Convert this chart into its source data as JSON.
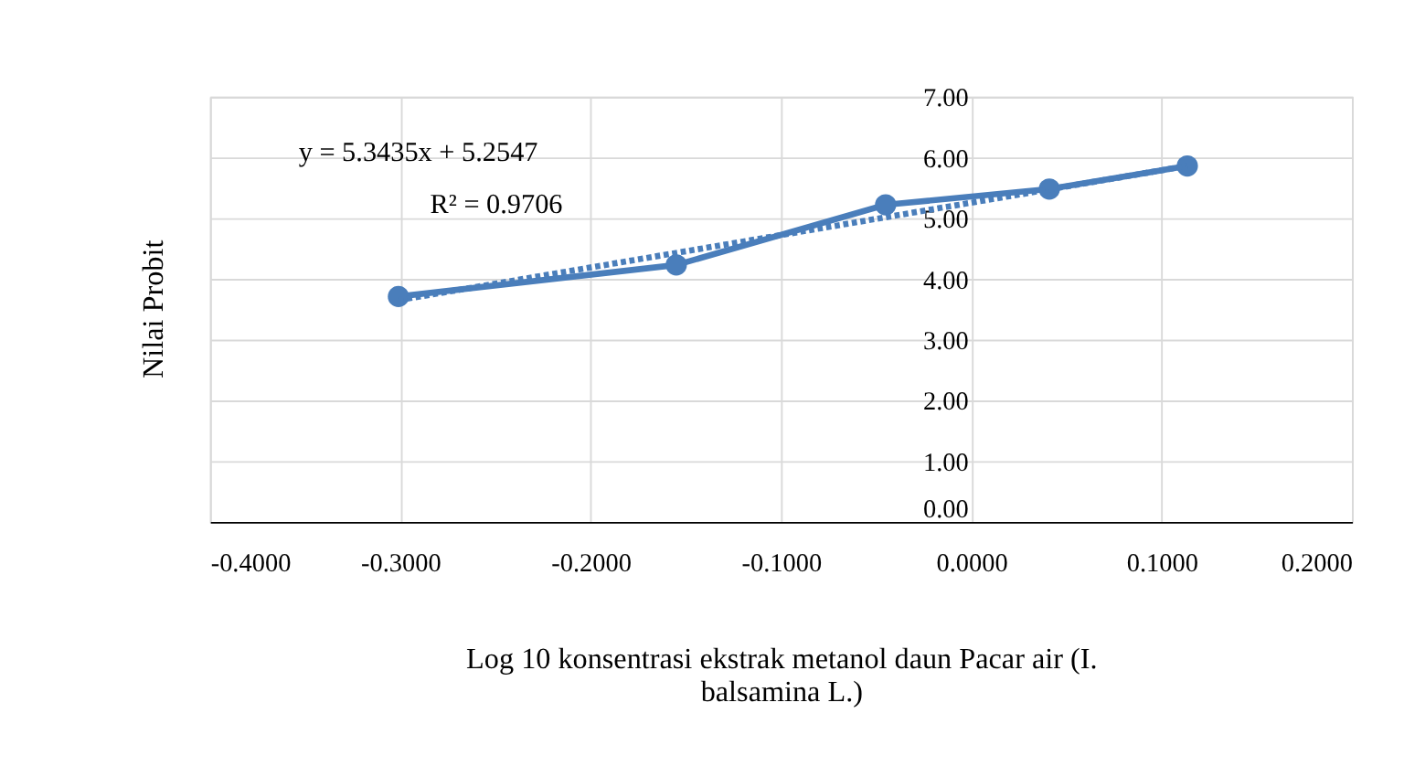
{
  "chart_data": {
    "type": "line",
    "xlabel": "Log 10  konsentrasi ekstrak metanol daun Pacar air (I. balsamina L.)",
    "ylabel": "Nilai Probit",
    "x": [
      -0.301,
      -0.155,
      -0.045,
      0.041,
      0.1135
    ],
    "series": [
      {
        "color": "#4a7ebb",
        "values": [
          3.71,
          4.23,
          5.22,
          5.48,
          5.86
        ],
        "marker": "circle",
        "line_style": "solid"
      },
      {
        "type": "line",
        "color": "#4a7ebb",
        "x": [
          -0.301,
          0.1135
        ],
        "values": [
          3.65,
          5.86
        ],
        "marker": "none",
        "line_style": "dotted"
      }
    ],
    "xlim": [
      -0.4,
      0.2
    ],
    "xticks": [
      {
        "value": -0.4,
        "label": "-0.4000"
      },
      {
        "value": -0.3,
        "label": "-0.3000"
      },
      {
        "value": -0.2,
        "label": "-0.2000"
      },
      {
        "value": -0.1,
        "label": "-0.1000"
      },
      {
        "value": 0,
        "label": "0.0000"
      },
      {
        "value": 0.1,
        "label": "0.1000"
      },
      {
        "value": 0.2,
        "label": "0.2000"
      }
    ],
    "ylim": [
      0,
      7
    ],
    "yticks": [
      {
        "value": 0,
        "label": "0.00"
      },
      {
        "value": 1,
        "label": "1.00"
      },
      {
        "value": 2,
        "label": "2.00"
      },
      {
        "value": 3,
        "label": "3.00"
      },
      {
        "value": 4,
        "label": "4.00"
      },
      {
        "value": 5,
        "label": "5.00"
      },
      {
        "value": 6,
        "label": "6.00"
      },
      {
        "value": 7,
        "label": "7.00"
      }
    ],
    "grid": true,
    "annotations": [
      "y = 5.3435x + 5.2547",
      "R² = 0.9706"
    ]
  }
}
